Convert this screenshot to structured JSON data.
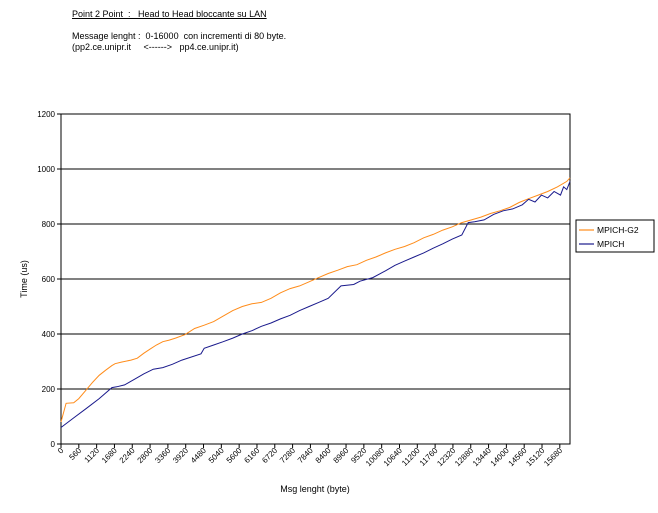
{
  "header": {
    "title": "Point 2 Point  :   Head to Head bloccante su LAN",
    "subtitle_line1": "Message lenght :  0-16000  con incrementi di 80 byte.",
    "subtitle_line2": "(pp2.ce.unipr.it     <------>   pp4.ce.unipr.it)"
  },
  "chart_data": {
    "type": "line",
    "title": "Point 2 Point  :   Head to Head bloccante su LAN",
    "xlabel": "Msg lenght (byte)",
    "ylabel": "Time (us)",
    "xlim": [
      0,
      16000
    ],
    "ylim": [
      0,
      1200
    ],
    "yticks": [
      0,
      200,
      400,
      600,
      800,
      1000,
      1200
    ],
    "xtick_labels": [
      "0",
      "560",
      "1120",
      "1680",
      "2240",
      "2800",
      "3360",
      "3920",
      "4480",
      "5040",
      "5600",
      "6160",
      "6720",
      "7280",
      "7840",
      "8400",
      "8960",
      "9520",
      "10080",
      "10640",
      "11200",
      "11760",
      "12320",
      "12880",
      "13440",
      "14000",
      "14560",
      "15120",
      "15680"
    ],
    "xtick_step": 560,
    "grid": "horizontal",
    "legend_position": "right",
    "series": [
      {
        "name": "MPICH-G2",
        "color": "#ff8c1a",
        "x": [
          0,
          160,
          400,
          560,
          800,
          1000,
          1200,
          1400,
          1600,
          1700,
          1900,
          2200,
          2400,
          2600,
          2800,
          3000,
          3200,
          3400,
          3600,
          3900,
          4200,
          4500,
          4800,
          5100,
          5400,
          5700,
          6000,
          6300,
          6600,
          6900,
          7200,
          7500,
          7800,
          8100,
          8400,
          8700,
          9000,
          9300,
          9600,
          9900,
          10200,
          10500,
          10800,
          11100,
          11400,
          11700,
          12000,
          12300,
          12600,
          12900,
          13200,
          13500,
          13800,
          14100,
          14400,
          14700,
          15000,
          15300,
          15600,
          15900,
          16000
        ],
        "values": [
          80,
          148,
          150,
          165,
          198,
          225,
          250,
          268,
          285,
          292,
          298,
          305,
          312,
          330,
          345,
          360,
          372,
          378,
          385,
          398,
          420,
          432,
          445,
          465,
          485,
          500,
          510,
          515,
          530,
          550,
          565,
          575,
          590,
          605,
          620,
          632,
          645,
          652,
          668,
          680,
          695,
          708,
          718,
          732,
          750,
          762,
          778,
          790,
          805,
          815,
          825,
          838,
          848,
          860,
          878,
          892,
          905,
          918,
          935,
          955,
          968
        ]
      },
      {
        "name": "MPICH",
        "color": "#1a1a8c",
        "x": [
          0,
          400,
          800,
          1200,
          1600,
          1750,
          2000,
          2300,
          2600,
          2900,
          3200,
          3500,
          3800,
          4400,
          4500,
          4800,
          5100,
          5400,
          5700,
          6000,
          6300,
          6600,
          6900,
          7200,
          7500,
          7800,
          8100,
          8400,
          8800,
          9200,
          9400,
          9800,
          10200,
          10500,
          10800,
          11100,
          11400,
          11700,
          12000,
          12300,
          12600,
          12800,
          13000,
          13300,
          13600,
          13900,
          14200,
          14500,
          14700,
          14900,
          15100,
          15300,
          15500,
          15700,
          15800,
          15900,
          16000
        ],
        "values": [
          60,
          95,
          130,
          165,
          205,
          208,
          215,
          235,
          255,
          272,
          278,
          290,
          305,
          328,
          348,
          360,
          372,
          385,
          400,
          412,
          428,
          440,
          455,
          468,
          485,
          500,
          515,
          530,
          575,
          580,
          592,
          605,
          630,
          650,
          665,
          680,
          695,
          712,
          728,
          745,
          760,
          805,
          808,
          815,
          835,
          848,
          855,
          870,
          890,
          880,
          905,
          895,
          918,
          905,
          935,
          925,
          955
        ]
      }
    ]
  }
}
